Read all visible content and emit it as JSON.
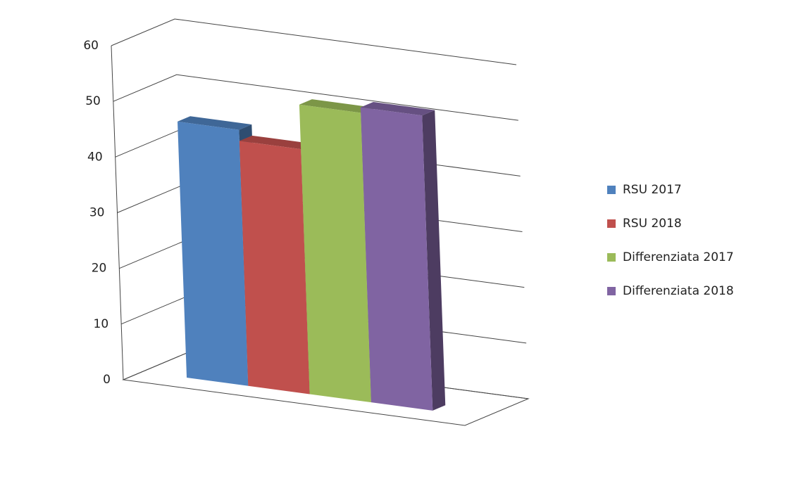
{
  "chart_data": {
    "type": "bar3d",
    "categories": [
      null
    ],
    "series": [
      {
        "name": "RSU 2017",
        "color": "#4f81bd",
        "values": [
          46
        ]
      },
      {
        "name": "RSU 2018",
        "color": "#c0504d",
        "values": [
          44
        ]
      },
      {
        "name": "Differenziata 2017",
        "color": "#9bbb59",
        "values": [
          52
        ]
      },
      {
        "name": "Differenziata 2018",
        "color": "#8064a2",
        "values": [
          53
        ]
      }
    ],
    "ylim": [
      0,
      60
    ],
    "yticks": [
      0,
      10,
      20,
      30,
      40,
      50,
      60
    ],
    "grid": true,
    "legend": "right"
  }
}
